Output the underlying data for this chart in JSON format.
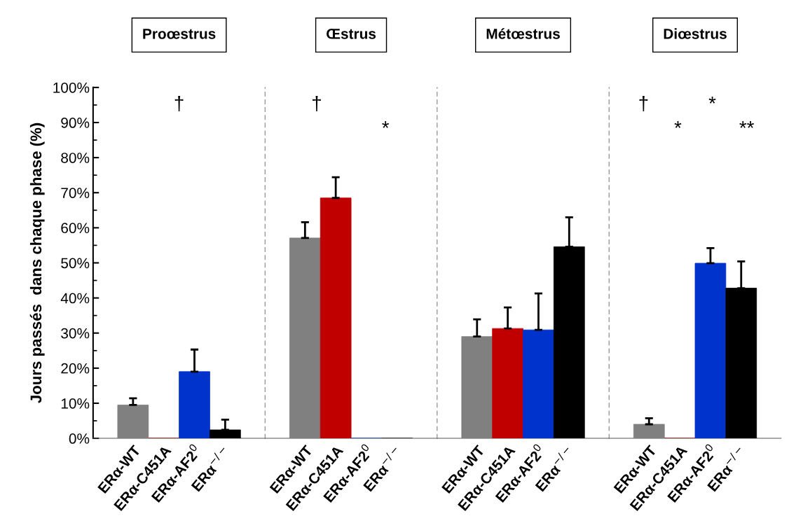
{
  "chart_data": [
    {
      "type": "bar",
      "title": "Proœstrus",
      "ylabel": "Jours passés  dans chaque phase (%)",
      "categories": [
        "ERα-WT",
        "ERα-C451A",
        "ERα-AF2$^{0}$",
        "ERα$^{−/−}$"
      ],
      "values": [
        9.5,
        0,
        19.0,
        2.4
      ],
      "errors": [
        [
          9.5,
          11.4
        ],
        null,
        [
          19.0,
          25.3
        ],
        [
          2.4,
          5.3
        ]
      ],
      "colors": [
        "#808080",
        "#c00000",
        "#0033cc",
        "#000000"
      ],
      "ylim": [
        0,
        100
      ],
      "yticks": [
        {
          "value": 0,
          "label": "0%"
        },
        {
          "value": 10,
          "label": "10%"
        },
        {
          "value": 20,
          "label": "20%"
        },
        {
          "value": 30,
          "label": "30%"
        },
        {
          "value": 40,
          "label": "40%"
        },
        {
          "value": 50,
          "label": "50%"
        },
        {
          "value": 60,
          "label": "60%"
        },
        {
          "value": 70,
          "label": "70%"
        },
        {
          "value": 80,
          "label": "80%"
        },
        {
          "value": 90,
          "label": "90%"
        },
        {
          "value": 100,
          "label": "100%"
        }
      ],
      "annotations": [
        "†"
      ]
    },
    {
      "type": "bar",
      "title": "Œstrus",
      "categories": [
        "ERα-WT",
        "ERα-C451A",
        "ERα-AF2$^{0}$",
        "ERα$^{−/−}$"
      ],
      "values": [
        57.1,
        68.5,
        0,
        0
      ],
      "errors": [
        [
          57.1,
          61.6
        ],
        [
          68.5,
          74.4
        ],
        null,
        null
      ],
      "colors": [
        "#808080",
        "#c00000",
        "#0033cc",
        "#000000"
      ],
      "ylim": [
        0,
        100
      ],
      "tick_labels": "x",
      "annotations": [
        "†",
        "*"
      ]
    },
    {
      "type": "bar",
      "title": "Métœstrus",
      "categories": [
        "ERα-WT",
        "ERα-C451A",
        "ERα-AF2$^{0}$",
        "ERα$^{−/−}$"
      ],
      "values": [
        29.0,
        31.3,
        30.9,
        54.6
      ],
      "errors": [
        [
          29.0,
          33.9
        ],
        [
          31.3,
          37.3
        ],
        [
          30.9,
          41.3
        ],
        [
          54.6,
          63.0
        ]
      ],
      "colors": [
        "#808080",
        "#c00000",
        "#0033cc",
        "#000000"
      ],
      "ylim": [
        0,
        100
      ],
      "tick_labels": "x"
    },
    {
      "type": "bar",
      "title": "Diœstrus",
      "categories": [
        "ERα-WT",
        "ERα-C451A",
        "ERα-AF2$^{0}$",
        "ERα$^{−/−}$"
      ],
      "values": [
        4.0,
        0,
        49.9,
        42.8
      ],
      "errors": [
        [
          4.0,
          5.7
        ],
        null,
        [
          49.9,
          54.2
        ],
        [
          42.8,
          50.4
        ]
      ],
      "colors": [
        "#808080",
        "#c00000",
        "#0033cc",
        "#000000"
      ],
      "ylim": [
        0,
        100
      ],
      "tick_labels": "x",
      "annotations": [
        "†",
        "*",
        "*",
        "**"
      ]
    }
  ]
}
